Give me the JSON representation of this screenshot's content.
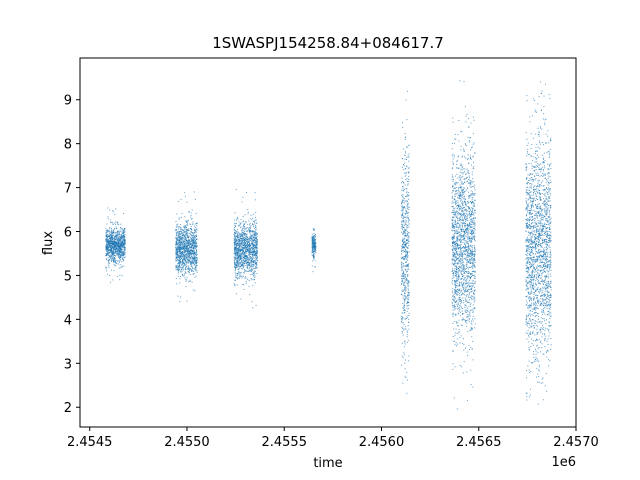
{
  "chart_data": {
    "type": "scatter",
    "title": "1SWASPJ154258.84+084617.7",
    "xlabel": "time",
    "ylabel": "flux",
    "x_offset_label": "1e6",
    "xlim": [
      2454450,
      2457000
    ],
    "ylim": [
      1.55,
      9.95
    ],
    "x_ticks": [
      2454500,
      2455000,
      2455500,
      2456000,
      2456500,
      2457000
    ],
    "x_tick_labels": [
      "2.4545",
      "2.4550",
      "2.4555",
      "2.4560",
      "2.4565",
      "2.4570"
    ],
    "y_ticks": [
      2,
      3,
      4,
      5,
      6,
      7,
      8,
      9
    ],
    "y_tick_labels": [
      "2",
      "3",
      "4",
      "5",
      "6",
      "7",
      "8",
      "9"
    ],
    "grid": false,
    "legend": "none",
    "marker_color": "#1f77b4",
    "series": [
      {
        "clusters": [
          {
            "x_start": 2454580,
            "x_end": 2454680,
            "y_center": 5.7,
            "spread": 0.35
          },
          {
            "x_start": 2454940,
            "x_end": 2455050,
            "y_center": 5.6,
            "spread": 0.55
          },
          {
            "x_start": 2455240,
            "x_end": 2455360,
            "y_center": 5.6,
            "spread": 0.55
          },
          {
            "x_start": 2455640,
            "x_end": 2455660,
            "y_center": 5.7,
            "spread": 0.25
          },
          {
            "x_start": 2456100,
            "x_end": 2456140,
            "y_center": 5.6,
            "spread": 2.2
          },
          {
            "x_start": 2456360,
            "x_end": 2456480,
            "y_center": 5.7,
            "spread": 1.9
          },
          {
            "x_start": 2456740,
            "x_end": 2456870,
            "y_center": 5.6,
            "spread": 2.3
          }
        ]
      }
    ]
  }
}
